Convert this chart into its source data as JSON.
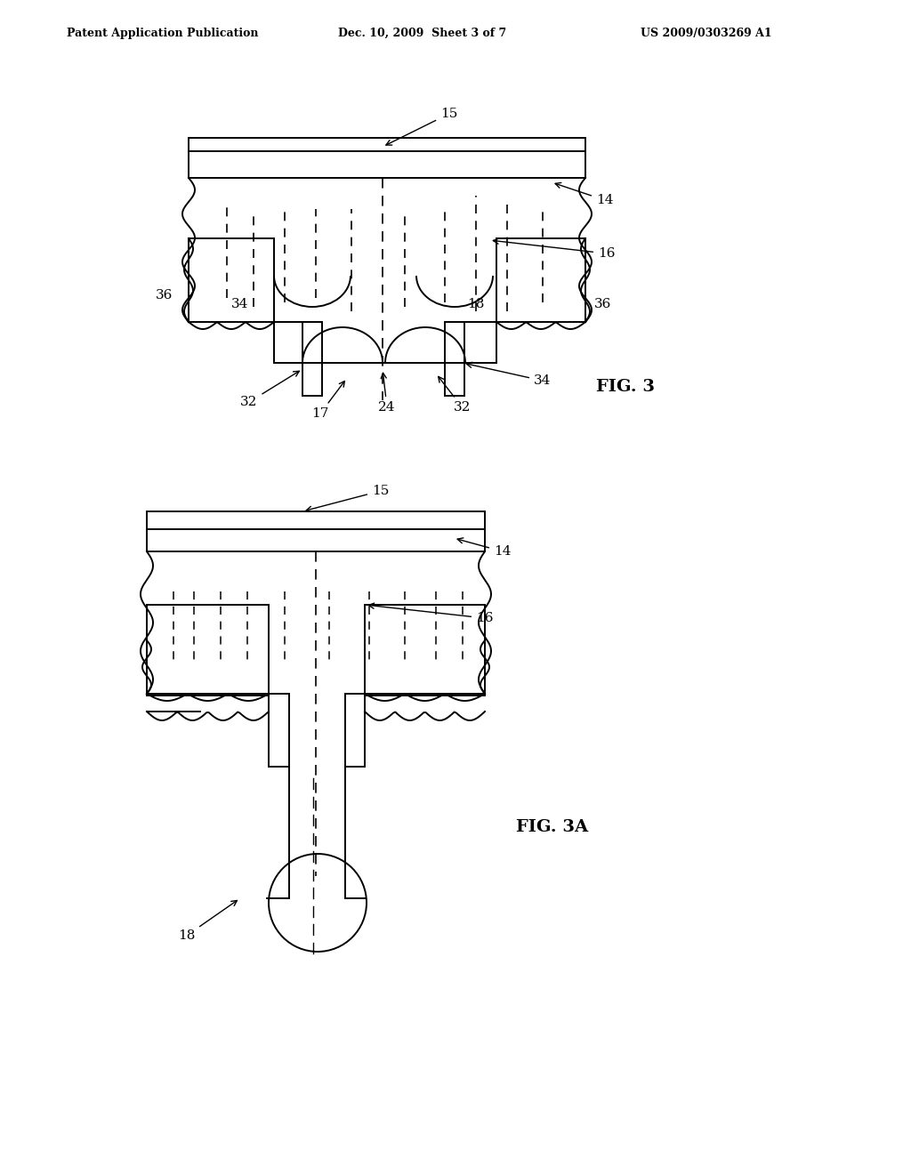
{
  "bg_color": "#ffffff",
  "line_color": "#000000",
  "header_left": "Patent Application Publication",
  "header_mid": "Dec. 10, 2009  Sheet 3 of 7",
  "header_right": "US 2009/0303269 A1",
  "fig3_label": "FIG. 3",
  "fig3a_label": "FIG. 3A"
}
